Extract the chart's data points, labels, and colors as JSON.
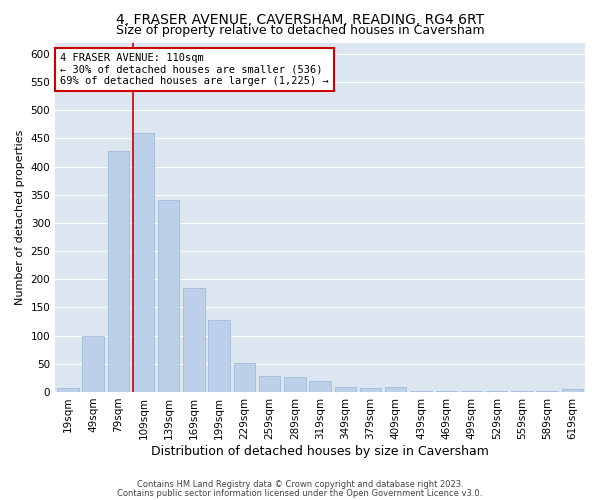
{
  "title": "4, FRASER AVENUE, CAVERSHAM, READING, RG4 6RT",
  "subtitle": "Size of property relative to detached houses in Caversham",
  "xlabel": "Distribution of detached houses by size in Caversham",
  "ylabel": "Number of detached properties",
  "categories": [
    "19sqm",
    "49sqm",
    "79sqm",
    "109sqm",
    "139sqm",
    "169sqm",
    "199sqm",
    "229sqm",
    "259sqm",
    "289sqm",
    "319sqm",
    "349sqm",
    "379sqm",
    "409sqm",
    "439sqm",
    "469sqm",
    "499sqm",
    "529sqm",
    "559sqm",
    "589sqm",
    "619sqm"
  ],
  "values": [
    7,
    100,
    428,
    460,
    340,
    185,
    128,
    52,
    28,
    26,
    20,
    9,
    7,
    8,
    2,
    2,
    2,
    2,
    1,
    1,
    5
  ],
  "bar_color": "#bdd0e9",
  "bar_edge_color": "#9ab5d5",
  "highlight_index": 3,
  "highlight_line_color": "#cc0000",
  "annotation_text": "4 FRASER AVENUE: 110sqm\n← 30% of detached houses are smaller (536)\n69% of detached houses are larger (1,225) →",
  "annotation_box_color": "#ffffff",
  "annotation_box_edge_color": "#cc0000",
  "ylim": [
    0,
    620
  ],
  "yticks": [
    0,
    50,
    100,
    150,
    200,
    250,
    300,
    350,
    400,
    450,
    500,
    550,
    600
  ],
  "background_color": "#dce6f0",
  "footer_line1": "Contains HM Land Registry data © Crown copyright and database right 2023.",
  "footer_line2": "Contains public sector information licensed under the Open Government Licence v3.0.",
  "title_fontsize": 10,
  "subtitle_fontsize": 9,
  "xlabel_fontsize": 9,
  "ylabel_fontsize": 8,
  "tick_fontsize": 7.5,
  "annotation_fontsize": 7.5,
  "footer_fontsize": 6
}
